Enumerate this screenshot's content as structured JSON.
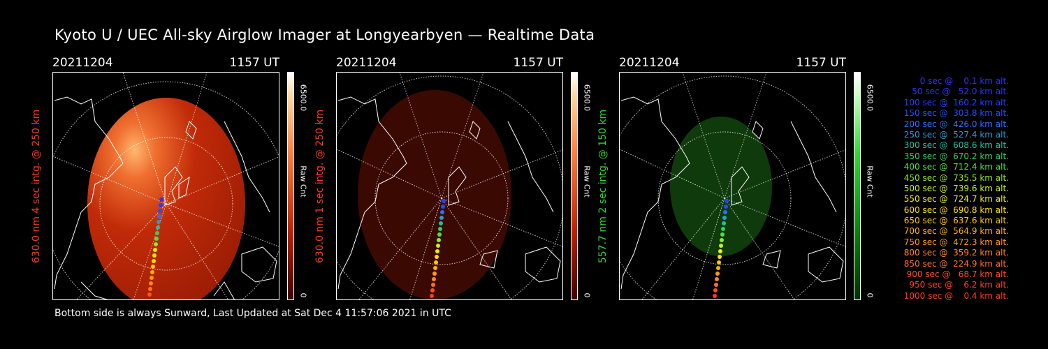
{
  "title": "Kyoto U / UEC All-sky Airglow Imager at Longyearbyen — Realtime Data",
  "footer": "Bottom side is always Sunward, Last Updated at Sat Dec  4 11:57:06 2021 in UTC",
  "colors": {
    "red_label": "#ff3a1a",
    "green_label": "#2fd62f"
  },
  "panels": [
    {
      "date": "20211204",
      "time": "1157 UT",
      "ylabel": "630.0 nm 4 sec intg. @ 250 km",
      "cbar_max": "6500.0",
      "cbar_label": "Raw Cnt",
      "cbar_min": "0",
      "label_color": "#ff3a1a",
      "glow": "bright-red"
    },
    {
      "date": "20211204",
      "time": "1157 UT",
      "ylabel": "630.0 nm 1 sec intg. @ 250 km",
      "cbar_max": "6500.0",
      "cbar_label": "Raw Cnt",
      "cbar_min": "0",
      "label_color": "#ff3a1a",
      "glow": "dim-red"
    },
    {
      "date": "20211204",
      "time": "1157 UT",
      "ylabel": "557.7 nm 2 sec intg. @ 150 km",
      "cbar_max": "6500.0",
      "cbar_label": "Raw Cnt",
      "cbar_min": "0",
      "label_color": "#2fd62f",
      "glow": "green"
    }
  ],
  "legend": [
    {
      "text": "   0 sec @    0.1 km alt.",
      "color": "#3030ff"
    },
    {
      "text": "  50 sec @   52.0 km alt.",
      "color": "#3030ff"
    },
    {
      "text": " 100 sec @  160.2 km alt.",
      "color": "#2040ff"
    },
    {
      "text": " 150 sec @  303.8 km alt.",
      "color": "#2050ff"
    },
    {
      "text": " 200 sec @  426.0 km alt.",
      "color": "#2a70ff"
    },
    {
      "text": " 250 sec @  527.4 km alt.",
      "color": "#2a9ad0"
    },
    {
      "text": " 300 sec @  608.6 km alt.",
      "color": "#20c0a0"
    },
    {
      "text": " 350 sec @  670.2 km alt.",
      "color": "#30d060"
    },
    {
      "text": " 400 sec @  712.4 km alt.",
      "color": "#50e040"
    },
    {
      "text": " 450 sec @  735.5 km alt.",
      "color": "#90e830"
    },
    {
      "text": " 500 sec @  739.6 km alt.",
      "color": "#c8f020"
    },
    {
      "text": " 550 sec @  724.7 km alt.",
      "color": "#f0f000"
    },
    {
      "text": " 600 sec @  690.8 km alt.",
      "color": "#ffe000"
    },
    {
      "text": " 650 sec @  637.6 km alt.",
      "color": "#ffc800"
    },
    {
      "text": " 700 sec @  564.9 km alt.",
      "color": "#ffb000"
    },
    {
      "text": " 750 sec @  472.3 km alt.",
      "color": "#ff9a10"
    },
    {
      "text": " 800 sec @  359.2 km alt.",
      "color": "#ff8820"
    },
    {
      "text": " 850 sec @  224.9 km alt.",
      "color": "#ff7020"
    },
    {
      "text": " 900 sec @   68.7 km alt.",
      "color": "#ff5020"
    },
    {
      "text": " 950 sec @    6.2 km alt.",
      "color": "#ff4020"
    },
    {
      "text": "1000 sec @    0.4 km alt.",
      "color": "#ff3a1a"
    }
  ]
}
